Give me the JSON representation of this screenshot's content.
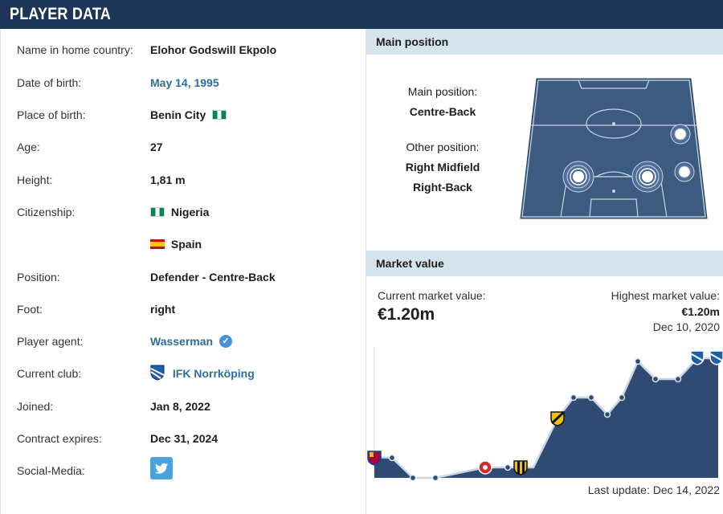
{
  "header": {
    "title": "PLAYER DATA"
  },
  "player": {
    "rows": [
      {
        "label": "Name in home country:",
        "value": "Elohor Godswill Ekpolo"
      },
      {
        "label": "Date of birth:",
        "value": "May 14, 1995"
      },
      {
        "label": "Place of birth:",
        "value": "Benin City"
      },
      {
        "label": "Age:",
        "value": "27"
      },
      {
        "label": "Height:",
        "value": "1,81 m"
      },
      {
        "label": "Citizenship:",
        "value": "Nigeria"
      },
      {
        "label": "",
        "value": "Spain"
      },
      {
        "label": "Position:",
        "value": "Defender - Centre-Back"
      },
      {
        "label": "Foot:",
        "value": "right"
      },
      {
        "label": "Player agent:",
        "value": "Wasserman"
      },
      {
        "label": "Current club:",
        "value": "IFK Norrköping"
      },
      {
        "label": "Joined:",
        "value": "Jan 8, 2022"
      },
      {
        "label": "Contract expires:",
        "value": "Dec 31, 2024"
      },
      {
        "label": "Social-Media:",
        "value": ""
      }
    ],
    "icons": {
      "birth_flag": "nigeria-flag-icon",
      "citizenship_flag_1": "nigeria-flag-icon",
      "citizenship_flag_2": "spain-flag-icon",
      "agent_verified": "verified-check-icon",
      "club_crest": "ifk-norrkoping-crest-icon",
      "social": "twitter-icon"
    }
  },
  "main_position": {
    "title": "Main position",
    "main_label": "Main position:",
    "main_value": "Centre-Back",
    "other_label": "Other position:",
    "other_values": [
      "Right Midfield",
      "Right-Back"
    ]
  },
  "market_value": {
    "title": "Market value",
    "current_label": "Current market value:",
    "current_value": "€1.20m",
    "highest_label": "Highest market value:",
    "highest_value": "€1.20m",
    "highest_date": "Dec 10, 2020",
    "last_update": "Last update: Dec 14, 2022"
  },
  "colors": {
    "header_bg": "#1d3557",
    "section_bg": "#d6e4ee",
    "link": "#2e6e9e",
    "pitch": "#3d5a80",
    "chart_fill": "#2f4b73"
  }
}
